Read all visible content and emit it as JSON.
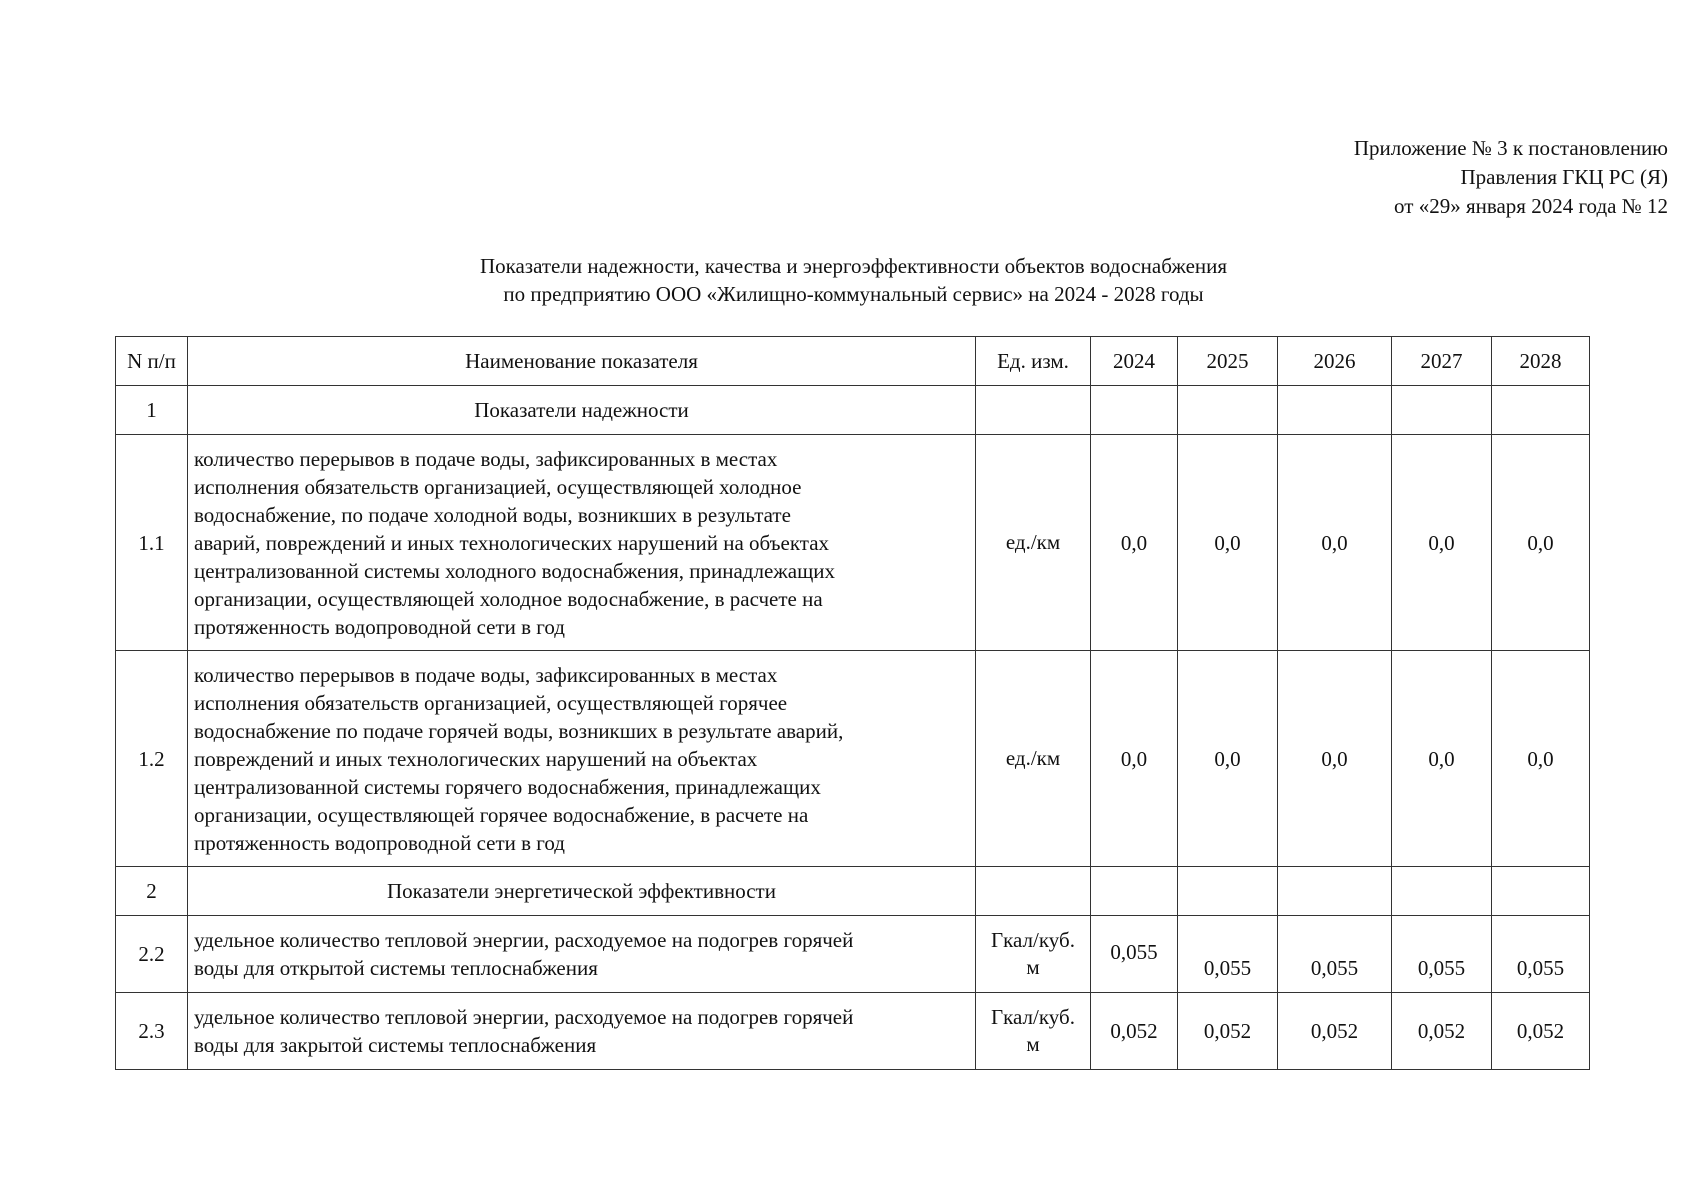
{
  "header": {
    "lines": [
      "Приложение № 3 к постановлению",
      "Правления ГКЦ РС (Я)",
      "от «29» января 2024 года № 12"
    ]
  },
  "title": {
    "lines": [
      "Показатели надежности, качества и энергоэффективности объектов водоснабжения",
      "по предприятию ООО «Жилищно-коммунальный сервис» на 2024 - 2028 годы"
    ]
  },
  "table": {
    "columns": [
      "N п/п",
      "Наименование показателя",
      "Ед. изм.",
      "2024",
      "2025",
      "2026",
      "2027",
      "2028"
    ],
    "rows": [
      {
        "num": "1",
        "name": [
          "Показатели надежности"
        ]
      },
      {
        "num": "1.1",
        "name": [
          "количество перерывов в подаче воды, зафиксированных в местах",
          "исполнения обязательств организацией, осуществляющей холодное",
          "водоснабжение, по подаче холодной воды, возникших в результате",
          "аварий, повреждений и иных технологических нарушений на объектах",
          "централизованной системы холодного водоснабжения, принадлежащих",
          "организации, осуществляющей холодное водоснабжение, в расчете на",
          "протяженность водопроводной сети в год"
        ],
        "unit": [
          "ед./км"
        ],
        "values": [
          "0,0",
          "0,0",
          "0,0",
          "0,0",
          "0,0"
        ]
      },
      {
        "num": "1.2",
        "name": [
          "количество перерывов в подаче воды, зафиксированных в местах",
          "исполнения обязательств организацией, осуществляющей горячее",
          "водоснабжение по подаче горячей воды, возникших в результате аварий,",
          "повреждений и иных технологических нарушений на объектах",
          "централизованной системы горячего водоснабжения, принадлежащих",
          "организации, осуществляющей горячее водоснабжение, в расчете на",
          "протяженность водопроводной сети в год"
        ],
        "unit": [
          "ед./км"
        ],
        "values": [
          "0,0",
          "0,0",
          "0,0",
          "0,0",
          "0,0"
        ]
      },
      {
        "num": "2",
        "name": [
          "Показатели энергетической эффективности"
        ]
      },
      {
        "num": "2.2",
        "name": [
          "удельное количество тепловой энергии, расходуемое на подогрев горячей",
          "воды для открытой системы теплоснабжения"
        ],
        "unit": [
          "Гкал/куб.",
          "м"
        ],
        "values": [
          "0,055",
          "0,055",
          "0,055",
          "0,055",
          "0,055"
        ]
      },
      {
        "num": "2.3",
        "name": [
          "удельное количество тепловой энергии, расходуемое на подогрев горячей",
          "воды для закрытой системы теплоснабжения"
        ],
        "unit": [
          "Гкал/куб.",
          "м"
        ],
        "values": [
          "0,052",
          "0,052",
          "0,052",
          "0,052",
          "0,052"
        ]
      }
    ]
  }
}
